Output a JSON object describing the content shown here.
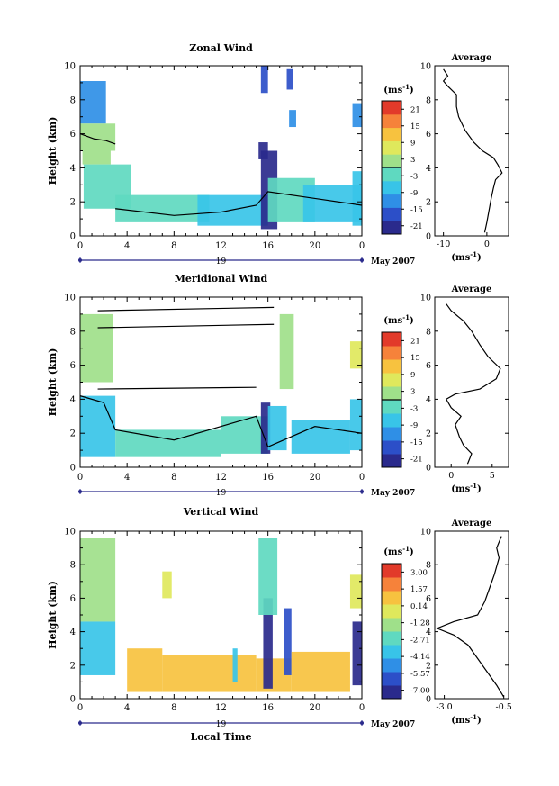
{
  "figure": {
    "xlabel": "Local Time",
    "date_label": "May 2007",
    "day_label": "19"
  },
  "chart_data": [
    {
      "type": "heatmap",
      "title": "Zonal Wind",
      "ylabel": "Height (km)",
      "unit": "(ms⁻¹)",
      "x_ticks": [
        "0",
        "4",
        "8",
        "12",
        "16",
        "20",
        "0"
      ],
      "xlim": [
        0,
        24
      ],
      "y_ticks": [
        "0",
        "2",
        "4",
        "6",
        "8",
        "10"
      ],
      "ylim": [
        0,
        10
      ],
      "colorbar_ticks": [
        "21",
        "15",
        "9",
        "3",
        "-3",
        "-9",
        "-15",
        "-21"
      ],
      "colorbar_range": [
        -24,
        24
      ],
      "zero_contour": 0,
      "cells": [
        [
          0,
          6.6,
          2.2,
          2.5,
          -12
        ],
        [
          0,
          5.0,
          3.0,
          1.6,
          1
        ],
        [
          0.2,
          4.2,
          2.4,
          0.8,
          4
        ],
        [
          0.3,
          1.6,
          4.0,
          2.6,
          -2
        ],
        [
          3,
          0.8,
          8,
          1.6,
          -4
        ],
        [
          10,
          0.6,
          6,
          1.8,
          -5
        ],
        [
          15.4,
          0.4,
          1.4,
          4.6,
          -24
        ],
        [
          15.2,
          4.5,
          0.8,
          1.0,
          -20
        ],
        [
          16,
          0.8,
          4,
          2.6,
          -3
        ],
        [
          19,
          0.8,
          5,
          2.2,
          -5
        ],
        [
          23.2,
          0.6,
          0.8,
          3.2,
          -6
        ],
        [
          23.2,
          6.4,
          0.8,
          1.4,
          -14
        ],
        [
          15.4,
          8.4,
          0.6,
          1.6,
          -16
        ],
        [
          17.6,
          8.6,
          0.5,
          1.2,
          -18
        ],
        [
          17.8,
          6.4,
          0.6,
          1.0,
          -10
        ]
      ],
      "contours": [
        [
          [
            0,
            6.0
          ],
          [
            1.2,
            5.7
          ],
          [
            2.2,
            5.6
          ],
          [
            3,
            5.4
          ]
        ],
        [
          [
            3,
            1.6
          ],
          [
            8,
            1.2
          ],
          [
            12,
            1.4
          ],
          [
            15,
            1.8
          ],
          [
            16,
            2.6
          ],
          [
            20,
            2.2
          ],
          [
            24,
            1.8
          ]
        ]
      ],
      "profile": {
        "title": "Average",
        "xlabel": "(ms⁻¹)",
        "x_ticks": [
          "-10",
          "0"
        ],
        "xlim": [
          -12,
          5
        ],
        "y_ticks": [
          "0",
          "2",
          "4",
          "6",
          "8",
          "10"
        ],
        "ylim": [
          0,
          10
        ],
        "points": [
          [
            -0.5,
            0.2
          ],
          [
            0,
            0.8
          ],
          [
            0.5,
            1.5
          ],
          [
            1,
            2.2
          ],
          [
            1.5,
            2.8
          ],
          [
            2,
            3.3
          ],
          [
            3.5,
            3.7
          ],
          [
            2.5,
            4.2
          ],
          [
            1.5,
            4.6
          ],
          [
            -1,
            5.0
          ],
          [
            -3,
            5.5
          ],
          [
            -5,
            6.2
          ],
          [
            -6.5,
            7.0
          ],
          [
            -7,
            7.6
          ],
          [
            -7,
            8.3
          ],
          [
            -9,
            8.8
          ],
          [
            -10,
            9.1
          ],
          [
            -9,
            9.4
          ],
          [
            -10,
            9.8
          ]
        ]
      }
    },
    {
      "type": "heatmap",
      "title": "Meridional Wind",
      "ylabel": "Height (km)",
      "unit": "(ms⁻¹)",
      "x_ticks": [
        "0",
        "4",
        "8",
        "12",
        "16",
        "20",
        "0"
      ],
      "xlim": [
        0,
        24
      ],
      "y_ticks": [
        "0",
        "2",
        "4",
        "6",
        "8",
        "10"
      ],
      "ylim": [
        0,
        10
      ],
      "colorbar_ticks": [
        "21",
        "15",
        "9",
        "3",
        "-3",
        "-9",
        "-15",
        "-21"
      ],
      "colorbar_range": [
        -24,
        24
      ],
      "zero_contour": 0,
      "cells": [
        [
          0,
          5.0,
          2.8,
          4.0,
          4
        ],
        [
          0,
          0.6,
          3,
          3.6,
          -5
        ],
        [
          3,
          0.6,
          9,
          1.6,
          -3
        ],
        [
          12,
          0.8,
          4,
          2.2,
          -4
        ],
        [
          15.4,
          0.8,
          0.8,
          3.0,
          -20
        ],
        [
          16,
          1.0,
          1.6,
          2.6,
          -6
        ],
        [
          17,
          4.6,
          1.2,
          4.4,
          2
        ],
        [
          18,
          0.8,
          5,
          2.0,
          -6
        ],
        [
          23,
          5.8,
          1.0,
          1.6,
          6
        ],
        [
          23,
          1.0,
          1.0,
          3.0,
          -8
        ]
      ],
      "contours": [
        [
          [
            1.5,
            4.6
          ],
          [
            15,
            4.7
          ]
        ],
        [
          [
            1.5,
            8.2
          ],
          [
            16.5,
            8.4
          ]
        ],
        [
          [
            1.5,
            9.2
          ],
          [
            16.5,
            9.4
          ]
        ],
        [
          [
            0,
            4.2
          ],
          [
            2,
            3.8
          ],
          [
            3,
            2.2
          ],
          [
            8,
            1.6
          ],
          [
            15,
            3.0
          ],
          [
            16,
            1.2
          ],
          [
            20,
            2.4
          ],
          [
            24,
            2.0
          ]
        ]
      ],
      "profile": {
        "title": "Average",
        "xlabel": "(ms⁻¹)",
        "x_ticks": [
          "0",
          "5"
        ],
        "xlim": [
          -2,
          7
        ],
        "y_ticks": [
          "0",
          "2",
          "4",
          "6",
          "8",
          "10"
        ],
        "ylim": [
          0,
          10
        ],
        "points": [
          [
            2,
            0.2
          ],
          [
            2.5,
            0.8
          ],
          [
            1.5,
            1.3
          ],
          [
            1,
            1.8
          ],
          [
            0.5,
            2.5
          ],
          [
            1.2,
            3.0
          ],
          [
            0,
            3.5
          ],
          [
            -0.6,
            4.0
          ],
          [
            0.5,
            4.3
          ],
          [
            3.5,
            4.6
          ],
          [
            5.5,
            5.2
          ],
          [
            6,
            5.8
          ],
          [
            4.5,
            6.5
          ],
          [
            3.5,
            7.2
          ],
          [
            2.5,
            8.0
          ],
          [
            1.5,
            8.6
          ],
          [
            0,
            9.2
          ],
          [
            -0.6,
            9.6
          ]
        ]
      }
    },
    {
      "type": "heatmap",
      "title": "Vertical Wind",
      "ylabel": "Height (km)",
      "unit": "(ms⁻¹)",
      "x_ticks": [
        "0",
        "4",
        "8",
        "12",
        "16",
        "20",
        "0"
      ],
      "xlim": [
        0,
        24
      ],
      "y_ticks": [
        "0",
        "2",
        "4",
        "6",
        "8",
        "10"
      ],
      "ylim": [
        0,
        10
      ],
      "colorbar_ticks": [
        "3.00",
        "1.57",
        "0.14",
        "-1.28",
        "-2.71",
        "-4.14",
        "-5.57",
        "-7.00"
      ],
      "colorbar_range": [
        -7.7,
        3.7
      ],
      "zero_contour": null,
      "cells": [
        [
          0,
          4.6,
          3,
          5.0,
          -1.0
        ],
        [
          0,
          1.4,
          3,
          3.2,
          -4.2
        ],
        [
          4,
          0.4,
          3,
          2.6,
          0.6
        ],
        [
          7,
          0.4,
          8,
          2.2,
          0.8
        ],
        [
          15,
          0.4,
          3,
          2.0,
          0.8
        ],
        [
          15.6,
          0.6,
          0.8,
          5.4,
          -6.8
        ],
        [
          15.2,
          5.0,
          1.6,
          4.6,
          -2.8
        ],
        [
          17.4,
          1.4,
          0.6,
          4.0,
          -5.8
        ],
        [
          18,
          0.4,
          5,
          2.4,
          0.6
        ],
        [
          23.2,
          0.8,
          0.8,
          3.8,
          -7.0
        ],
        [
          23,
          5.4,
          1,
          2.0,
          0.2
        ],
        [
          13,
          1.0,
          0.4,
          2.0,
          -3.4
        ],
        [
          7,
          6.0,
          0.8,
          1.6,
          -0.6
        ]
      ],
      "contours": [],
      "profile": {
        "title": "Average",
        "xlabel": "(ms⁻¹)",
        "x_ticks": [
          "-3.0",
          "-0.5"
        ],
        "xlim": [
          -3.4,
          -0.3
        ],
        "y_ticks": [
          "0",
          "2",
          "4",
          "6",
          "8",
          "10"
        ],
        "ylim": [
          0,
          10
        ],
        "points": [
          [
            -0.5,
            0.1
          ],
          [
            -0.8,
            0.8
          ],
          [
            -1.2,
            1.6
          ],
          [
            -1.6,
            2.4
          ],
          [
            -2.0,
            3.2
          ],
          [
            -2.6,
            3.8
          ],
          [
            -3.3,
            4.2
          ],
          [
            -2.6,
            4.6
          ],
          [
            -1.6,
            5.0
          ],
          [
            -1.3,
            5.8
          ],
          [
            -1.1,
            6.6
          ],
          [
            -0.9,
            7.4
          ],
          [
            -0.7,
            8.4
          ],
          [
            -0.8,
            9.0
          ],
          [
            -0.6,
            9.7
          ]
        ]
      }
    }
  ]
}
